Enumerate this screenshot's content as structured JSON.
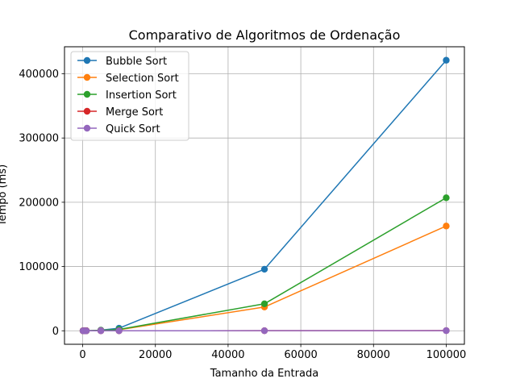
{
  "chart_data": {
    "type": "line",
    "title": "Comparativo de Algoritmos de Ordenação",
    "xlabel": "Tamanho da Entrada",
    "ylabel": "Tempo (ms)",
    "xlim": [
      -5000,
      105000
    ],
    "ylim": [
      -21000,
      442000
    ],
    "x_ticks": [
      0,
      20000,
      40000,
      60000,
      80000,
      100000
    ],
    "y_ticks": [
      0,
      100000,
      200000,
      300000,
      400000
    ],
    "grid": true,
    "legend_position": "top-left",
    "x": [
      100,
      500,
      1000,
      5000,
      10000,
      50000,
      100000
    ],
    "series": [
      {
        "name": "Bubble Sort",
        "color": "#1f77b4",
        "values": [
          1,
          20,
          80,
          1000,
          4000,
          95800,
          421000
        ]
      },
      {
        "name": "Selection Sort",
        "color": "#ff7f0e",
        "values": [
          1,
          10,
          40,
          500,
          1600,
          37000,
          163000
        ]
      },
      {
        "name": "Insertion Sort",
        "color": "#2ca02c",
        "values": [
          1,
          12,
          50,
          600,
          2000,
          42000,
          207000
        ]
      },
      {
        "name": "Merge Sort",
        "color": "#d62728",
        "values": [
          0,
          1,
          2,
          10,
          20,
          120,
          250
        ]
      },
      {
        "name": "Quick Sort",
        "color": "#9467bd",
        "values": [
          0,
          1,
          1,
          8,
          15,
          100,
          200
        ]
      }
    ]
  }
}
